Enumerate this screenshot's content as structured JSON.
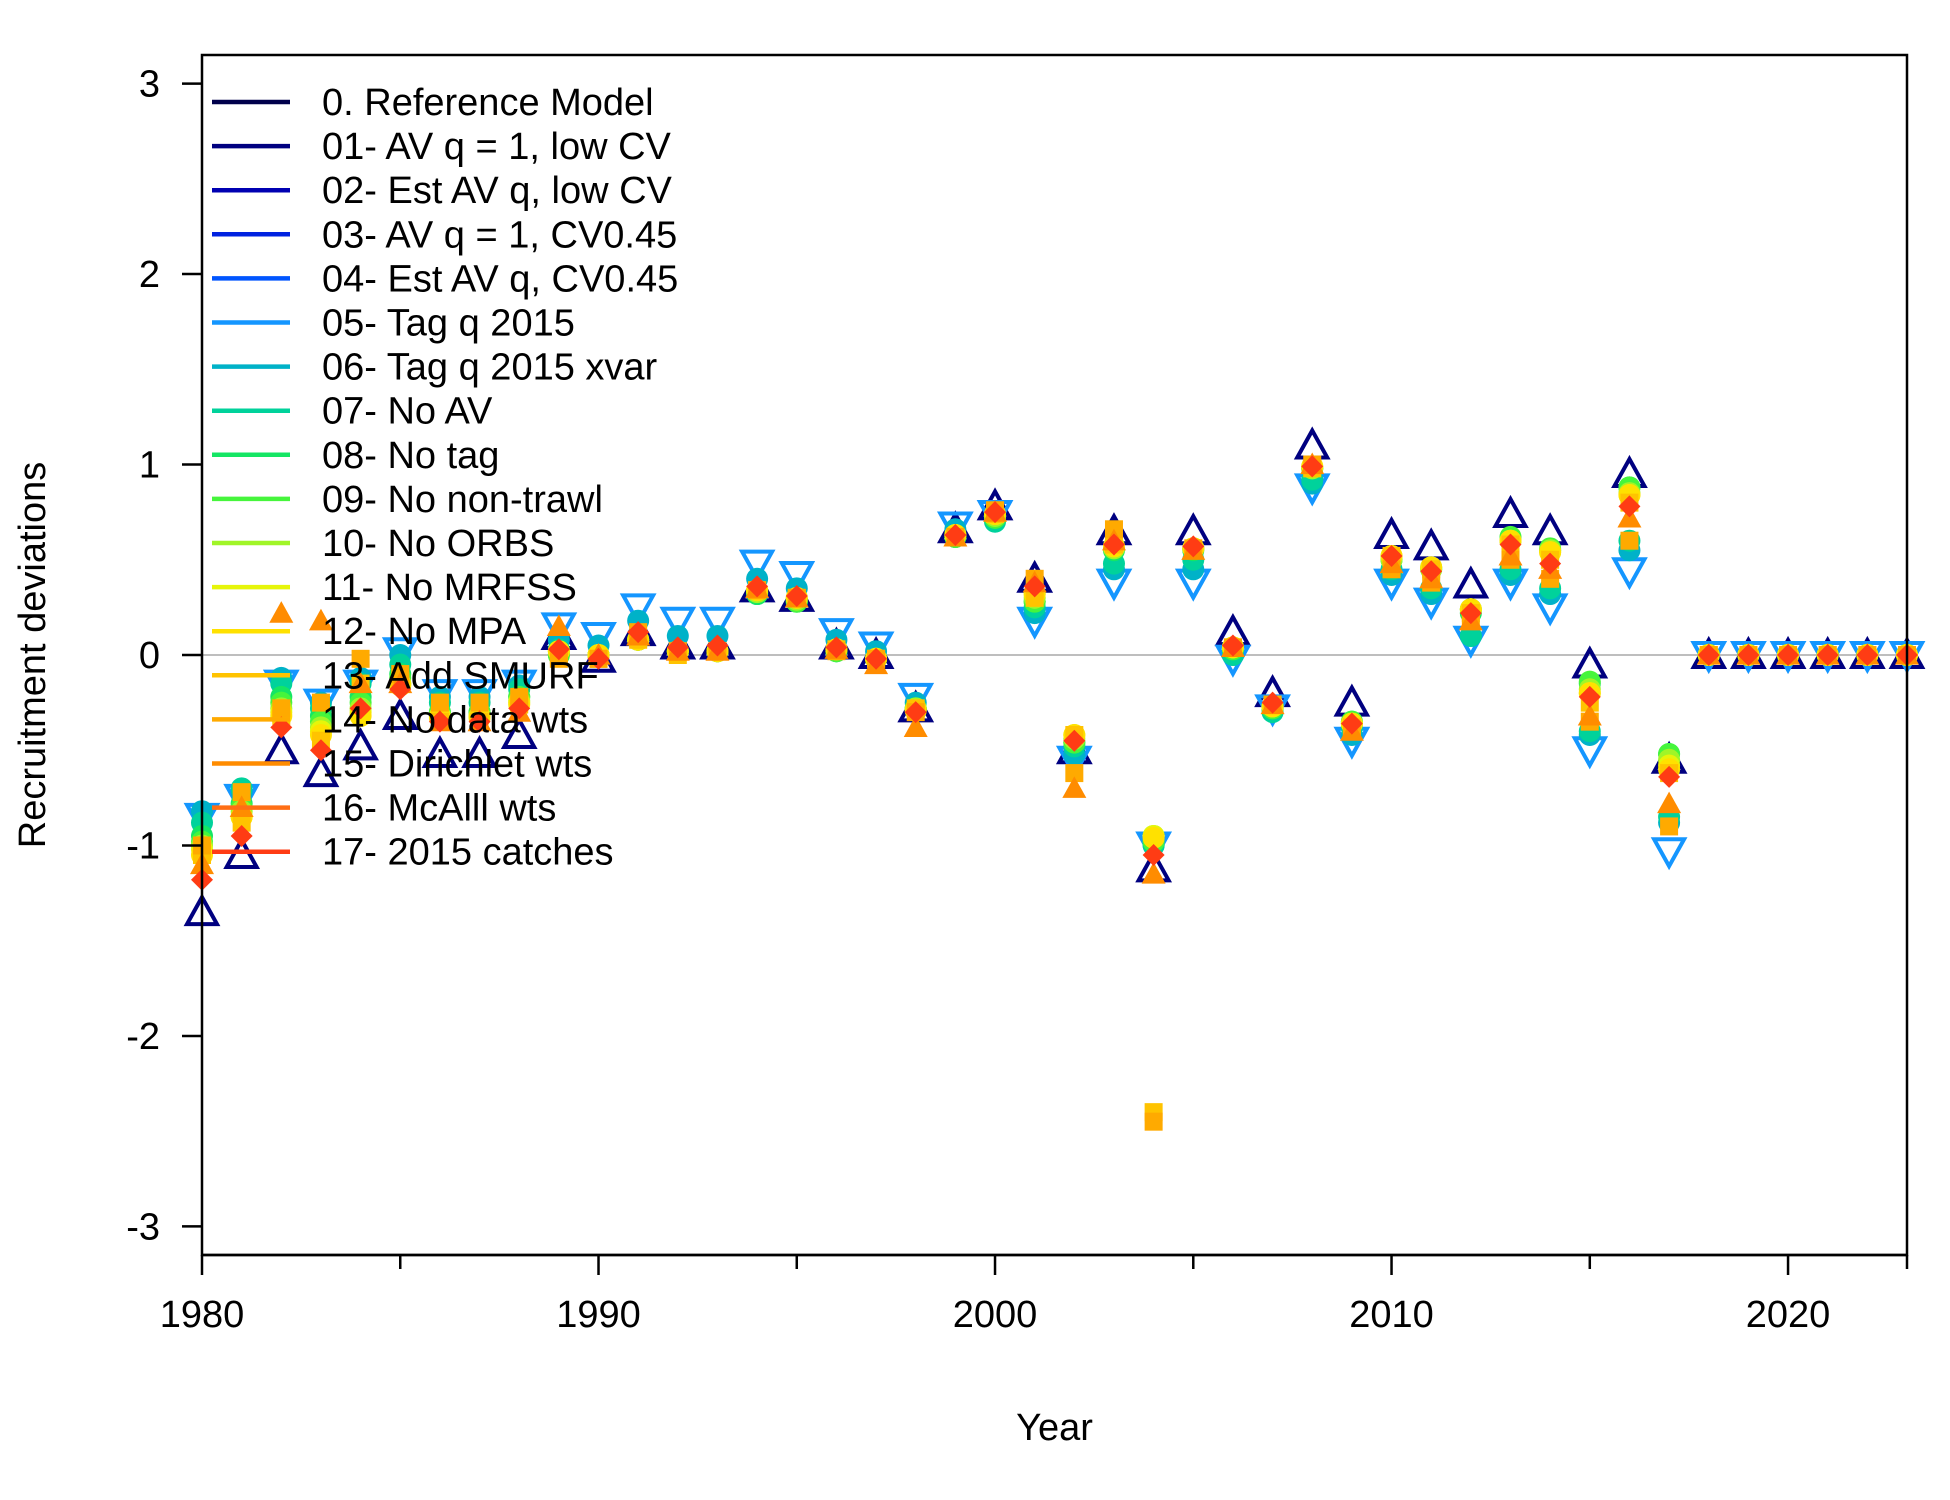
{
  "chart_data": {
    "type": "scatter",
    "title": "",
    "xlabel": "Year",
    "ylabel": "Recruitment deviations",
    "xlim": [
      1980,
      2023
    ],
    "ylim": [
      -3.15,
      3.15
    ],
    "xticks": [
      1980,
      1990,
      2000,
      2010,
      2020
    ],
    "yticks": [
      -3,
      -2,
      -1,
      0,
      1,
      2,
      3
    ],
    "grid": false,
    "reference_line_y": 0,
    "legend_position": "top-left",
    "x": [
      1980,
      1981,
      1982,
      1983,
      1984,
      1985,
      1986,
      1987,
      1988,
      1989,
      1990,
      1991,
      1992,
      1993,
      1994,
      1995,
      1996,
      1997,
      1998,
      1999,
      2000,
      2001,
      2002,
      2003,
      2004,
      2005,
      2006,
      2007,
      2008,
      2009,
      2010,
      2011,
      2012,
      2013,
      2014,
      2015,
      2016,
      2017,
      2018,
      2019,
      2020,
      2021,
      2022,
      2023
    ],
    "series": [
      {
        "name": "0. Reference Model",
        "color": "#00004b",
        "marker": "none",
        "values": [
          -1.2,
          -0.95,
          -0.35,
          -0.5,
          -0.3,
          -0.2,
          -0.4,
          -0.4,
          -0.3,
          0.0,
          0.0,
          0.1,
          0.05,
          0.05,
          0.35,
          0.3,
          0.05,
          0.0,
          -0.3,
          0.65,
          0.75,
          0.35,
          -0.5,
          0.6,
          -1.1,
          0.6,
          0.05,
          -0.25,
          1.05,
          -0.3,
          0.55,
          0.5,
          0.3,
          0.65,
          0.6,
          -0.1,
          0.9,
          -0.6,
          0,
          0,
          0,
          0,
          0,
          0
        ]
      },
      {
        "name": "01- AV q = 1, low CV",
        "color": "#000080",
        "marker": "triangle-up",
        "values": [
          -1.35,
          -1.05,
          -0.5,
          -0.62,
          -0.48,
          -0.32,
          -0.52,
          -0.52,
          -0.42,
          0.1,
          -0.02,
          0.12,
          0.05,
          0.05,
          0.35,
          0.3,
          0.05,
          0.0,
          -0.28,
          0.66,
          0.78,
          0.4,
          -0.5,
          0.65,
          -1.12,
          0.65,
          0.12,
          -0.2,
          1.1,
          -0.25,
          0.63,
          0.57,
          0.37,
          0.74,
          0.65,
          -0.05,
          0.95,
          -0.55,
          0,
          0,
          0,
          0,
          0,
          0
        ]
      },
      {
        "name": "02- Est AV q, low CV",
        "color": "#0000b2",
        "marker": "none",
        "values": [
          -1.25,
          -0.98,
          -0.42,
          -0.55,
          -0.4,
          -0.26,
          -0.46,
          -0.46,
          -0.36,
          0.05,
          -0.02,
          0.1,
          0.04,
          0.04,
          0.34,
          0.3,
          0.04,
          0.0,
          -0.29,
          0.64,
          0.76,
          0.37,
          -0.5,
          0.62,
          -1.1,
          0.62,
          0.08,
          -0.23,
          1.06,
          -0.28,
          0.58,
          0.52,
          0.32,
          0.68,
          0.62,
          -0.08,
          0.9,
          -0.58,
          0,
          0,
          0,
          0,
          0,
          0
        ]
      },
      {
        "name": "03- AV q = 1, CV0.45",
        "color": "#0022e0",
        "marker": "none",
        "values": [
          -1.1,
          -0.9,
          -0.3,
          -0.4,
          -0.3,
          -0.15,
          -0.35,
          -0.35,
          -0.28,
          0.03,
          0.0,
          0.1,
          0.05,
          0.05,
          0.35,
          0.3,
          0.05,
          0.0,
          -0.28,
          0.64,
          0.75,
          0.33,
          -0.48,
          0.55,
          -1.05,
          0.55,
          0.05,
          -0.25,
          1.0,
          -0.3,
          0.5,
          0.45,
          0.25,
          0.55,
          0.5,
          -0.2,
          0.8,
          -0.65,
          0,
          0,
          0,
          0,
          0,
          0
        ]
      },
      {
        "name": "04- Est AV q, CV0.45",
        "color": "#0055ff",
        "marker": "none",
        "values": [
          -1.05,
          -0.88,
          -0.28,
          -0.38,
          -0.28,
          -0.14,
          -0.33,
          -0.33,
          -0.26,
          0.03,
          0.0,
          0.1,
          0.05,
          0.05,
          0.35,
          0.3,
          0.05,
          0.0,
          -0.28,
          0.63,
          0.74,
          0.32,
          -0.48,
          0.55,
          -1.05,
          0.55,
          0.04,
          -0.25,
          0.98,
          -0.32,
          0.5,
          0.45,
          0.25,
          0.55,
          0.5,
          -0.25,
          0.75,
          -0.7,
          0,
          0,
          0,
          0,
          0,
          0
        ]
      },
      {
        "name": "05- Tag q 2015",
        "color": "#1496ff",
        "marker": "triangle-down",
        "values": [
          -0.85,
          -0.75,
          -0.15,
          -0.25,
          -0.15,
          0.02,
          -0.2,
          -0.2,
          -0.15,
          0.15,
          0.1,
          0.25,
          0.18,
          0.18,
          0.48,
          0.42,
          0.12,
          0.05,
          -0.22,
          0.68,
          0.74,
          0.18,
          -0.55,
          0.38,
          -1.0,
          0.38,
          -0.02,
          -0.28,
          0.88,
          -0.45,
          0.38,
          0.28,
          0.08,
          0.38,
          0.25,
          -0.5,
          0.44,
          -1.03,
          0,
          0,
          0,
          0,
          0,
          0
        ]
      },
      {
        "name": "06- Tag q 2015 xvar",
        "color": "#00b2c8",
        "marker": "circle",
        "values": [
          -0.82,
          -0.72,
          -0.12,
          -0.25,
          -0.12,
          0.0,
          -0.22,
          -0.22,
          -0.16,
          0.08,
          0.05,
          0.18,
          0.1,
          0.1,
          0.4,
          0.35,
          0.08,
          0.02,
          -0.25,
          0.66,
          0.72,
          0.22,
          -0.52,
          0.45,
          -1.0,
          0.45,
          0.0,
          -0.28,
          0.9,
          -0.42,
          0.42,
          0.32,
          0.1,
          0.42,
          0.32,
          -0.42,
          0.55,
          -0.88,
          0,
          0,
          0,
          0,
          0,
          0
        ]
      },
      {
        "name": "07- No AV",
        "color": "#00d29b",
        "marker": "circle",
        "values": [
          -0.88,
          -0.7,
          -0.15,
          -0.28,
          -0.15,
          -0.05,
          -0.25,
          -0.25,
          -0.18,
          0.03,
          0.0,
          0.08,
          0.02,
          0.02,
          0.32,
          0.28,
          0.02,
          -0.02,
          -0.28,
          0.62,
          0.7,
          0.25,
          -0.48,
          0.48,
          -1.0,
          0.5,
          0.0,
          -0.3,
          0.92,
          -0.38,
          0.45,
          0.35,
          0.1,
          0.45,
          0.35,
          -0.4,
          0.6,
          -0.85,
          0,
          0,
          0,
          0,
          0,
          0
        ]
      },
      {
        "name": "08- No tag",
        "color": "#14e664",
        "marker": "circle",
        "values": [
          -0.95,
          -0.78,
          -0.22,
          -0.32,
          -0.22,
          -0.1,
          -0.3,
          -0.3,
          -0.22,
          0.0,
          0.0,
          0.08,
          0.02,
          0.02,
          0.32,
          0.28,
          0.02,
          -0.02,
          -0.28,
          0.62,
          0.72,
          0.28,
          -0.46,
          0.55,
          -0.98,
          0.55,
          0.03,
          -0.28,
          0.98,
          -0.35,
          0.5,
          0.45,
          0.22,
          0.6,
          0.55,
          -0.15,
          0.88,
          -0.52,
          0,
          0,
          0,
          0,
          0,
          0
        ]
      },
      {
        "name": "09- No non-trawl",
        "color": "#46f53c",
        "marker": "circle",
        "values": [
          -0.98,
          -0.8,
          -0.25,
          -0.35,
          -0.25,
          -0.12,
          -0.3,
          -0.3,
          -0.22,
          0.0,
          0.0,
          0.08,
          0.02,
          0.02,
          0.33,
          0.28,
          0.02,
          -0.02,
          -0.28,
          0.62,
          0.72,
          0.28,
          -0.46,
          0.56,
          -0.98,
          0.56,
          0.03,
          -0.28,
          0.98,
          -0.35,
          0.5,
          0.46,
          0.24,
          0.62,
          0.56,
          -0.14,
          0.88,
          -0.52,
          0,
          0,
          0,
          0,
          0,
          0
        ]
      },
      {
        "name": "10- No ORBS",
        "color": "#a0f528",
        "marker": "circle",
        "values": [
          -1.0,
          -0.82,
          -0.28,
          -0.38,
          -0.28,
          -0.15,
          -0.32,
          -0.32,
          -0.24,
          0.02,
          0.0,
          0.08,
          0.02,
          0.02,
          0.33,
          0.29,
          0.03,
          -0.02,
          -0.28,
          0.63,
          0.73,
          0.3,
          -0.44,
          0.56,
          -0.95,
          0.56,
          0.04,
          -0.27,
          0.98,
          -0.36,
          0.5,
          0.45,
          0.24,
          0.6,
          0.55,
          -0.18,
          0.85,
          -0.55,
          0,
          0,
          0,
          0,
          0,
          0
        ]
      },
      {
        "name": "11- No MRFSS",
        "color": "#e6f50a",
        "marker": "circle",
        "values": [
          -1.02,
          -0.85,
          -0.3,
          -0.4,
          -0.3,
          -0.15,
          -0.32,
          -0.32,
          -0.25,
          0.02,
          0.0,
          0.08,
          0.02,
          0.02,
          0.34,
          0.3,
          0.03,
          -0.02,
          -0.29,
          0.63,
          0.74,
          0.32,
          -0.42,
          0.57,
          -0.95,
          0.56,
          0.04,
          -0.27,
          0.99,
          -0.36,
          0.52,
          0.46,
          0.24,
          0.6,
          0.54,
          -0.2,
          0.84,
          -0.58,
          0,
          0,
          0,
          0,
          0,
          0
        ]
      },
      {
        "name": "12- No MPA",
        "color": "#ffe100",
        "marker": "circle",
        "values": [
          -1.05,
          -0.85,
          -0.32,
          -0.42,
          -0.32,
          -0.16,
          -0.33,
          -0.33,
          -0.26,
          0.02,
          0.0,
          0.08,
          0.02,
          0.02,
          0.34,
          0.3,
          0.03,
          -0.02,
          -0.29,
          0.63,
          0.74,
          0.32,
          -0.42,
          0.57,
          -0.96,
          0.56,
          0.04,
          -0.27,
          0.99,
          -0.36,
          0.52,
          0.46,
          0.24,
          0.6,
          0.54,
          -0.2,
          0.84,
          -0.6,
          0,
          0,
          0,
          0,
          0,
          0
        ]
      },
      {
        "name": "13- Add SMURF",
        "color": "#ffc300",
        "marker": "square",
        "values": [
          -1.05,
          -0.88,
          -0.32,
          -0.45,
          -0.15,
          -0.15,
          -0.35,
          -0.35,
          -0.26,
          0.0,
          -0.02,
          0.08,
          0.0,
          0.02,
          0.34,
          0.3,
          0.03,
          -0.02,
          -0.28,
          0.62,
          0.74,
          0.3,
          -0.42,
          0.58,
          -2.4,
          0.55,
          0.04,
          -0.26,
          0.98,
          -0.38,
          0.52,
          0.45,
          0.22,
          0.58,
          0.5,
          -0.25,
          0.8,
          -0.62,
          0,
          0,
          0,
          0,
          0,
          0
        ]
      },
      {
        "name": "14- No data wts",
        "color": "#ffaa00",
        "marker": "square",
        "values": [
          -1.0,
          -0.72,
          -0.28,
          -0.25,
          -0.02,
          -0.1,
          -0.25,
          -0.25,
          -0.22,
          -0.02,
          -0.02,
          0.12,
          0.02,
          0.02,
          0.34,
          0.3,
          0.02,
          -0.02,
          -0.3,
          0.62,
          0.76,
          0.4,
          -0.62,
          0.66,
          -2.45,
          0.56,
          0.04,
          -0.26,
          1.0,
          -0.4,
          0.45,
          0.38,
          0.18,
          0.5,
          0.4,
          -0.35,
          0.6,
          -0.9,
          0,
          0,
          0,
          0,
          0,
          0
        ]
      },
      {
        "name": "15- Dirichlet wts",
        "color": "#ff8c00",
        "marker": "triangle-up",
        "values": [
          -1.1,
          -0.8,
          0.22,
          0.18,
          -0.15,
          -0.15,
          -0.35,
          -0.35,
          -0.3,
          0.15,
          0.0,
          0.1,
          0.02,
          0.02,
          0.35,
          0.3,
          0.03,
          -0.05,
          -0.38,
          0.62,
          0.75,
          0.38,
          -0.7,
          0.6,
          -1.15,
          0.55,
          0.04,
          -0.26,
          1.0,
          -0.4,
          0.48,
          0.4,
          0.18,
          0.52,
          0.45,
          -0.32,
          0.72,
          -0.78,
          0,
          0,
          0,
          0,
          0,
          0
        ]
      },
      {
        "name": "16- McAlll wts",
        "color": "#ff6e14",
        "marker": "none",
        "values": [
          -1.15,
          -0.9,
          -0.35,
          -0.48,
          -0.25,
          -0.18,
          -0.35,
          -0.35,
          -0.28,
          0.05,
          -0.02,
          0.1,
          0.04,
          0.04,
          0.35,
          0.3,
          0.04,
          -0.02,
          -0.3,
          0.63,
          0.75,
          0.35,
          -0.5,
          0.58,
          -1.08,
          0.56,
          0.05,
          -0.25,
          1.0,
          -0.38,
          0.5,
          0.44,
          0.22,
          0.58,
          0.48,
          -0.22,
          0.78,
          -0.62,
          0,
          0,
          0,
          0,
          0,
          0
        ]
      },
      {
        "name": "17- 2015 catches",
        "color": "#ff3c14",
        "marker": "diamond",
        "values": [
          -1.18,
          -0.95,
          -0.38,
          -0.5,
          -0.28,
          -0.18,
          -0.35,
          -0.35,
          -0.28,
          0.03,
          -0.02,
          0.12,
          0.04,
          0.05,
          0.36,
          0.31,
          0.04,
          -0.02,
          -0.3,
          0.63,
          0.75,
          0.36,
          -0.45,
          0.58,
          -1.05,
          0.57,
          0.05,
          -0.25,
          0.99,
          -0.36,
          0.52,
          0.44,
          0.22,
          0.58,
          0.48,
          -0.22,
          0.78,
          -0.64,
          0,
          0,
          0,
          0,
          0,
          0
        ]
      }
    ]
  }
}
